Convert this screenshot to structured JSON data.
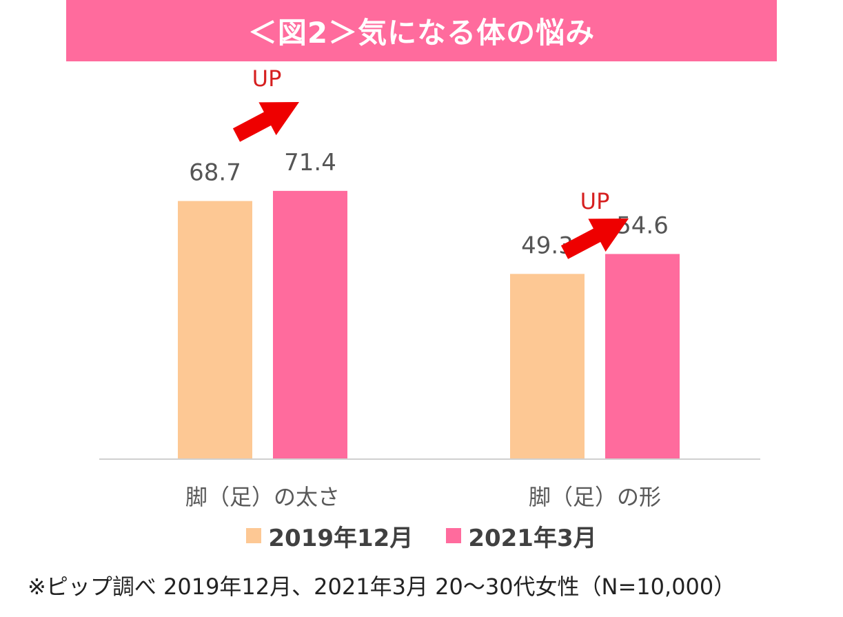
{
  "colors": {
    "banner": "#ff6b9d",
    "series_2019": "#fdc894",
    "series_2021": "#ff6b9d",
    "arrow": "#ee0000",
    "up_text": "#d62020",
    "axis": "#d0d0d0"
  },
  "chart_data": {
    "type": "bar",
    "title": "＜図2＞気になる体の悩み",
    "categories": [
      "脚（足）の太さ",
      "脚（足）の形"
    ],
    "series": [
      {
        "name": "2019年12月",
        "values": [
          68.7,
          49.3
        ]
      },
      {
        "name": "2021年3月",
        "values": [
          71.4,
          54.6
        ]
      }
    ],
    "value_labels": [
      [
        "68.7",
        "49.3"
      ],
      [
        "71.4",
        "54.6"
      ]
    ],
    "annotations": [
      "UP",
      "UP"
    ],
    "xlabel": "",
    "ylabel": "",
    "ylim": [
      0,
      100
    ],
    "grid": false,
    "legend": "bottom"
  },
  "footnote": "※ピップ調べ 2019年12月、2021年3月 20～30代女性（N=10,000）"
}
